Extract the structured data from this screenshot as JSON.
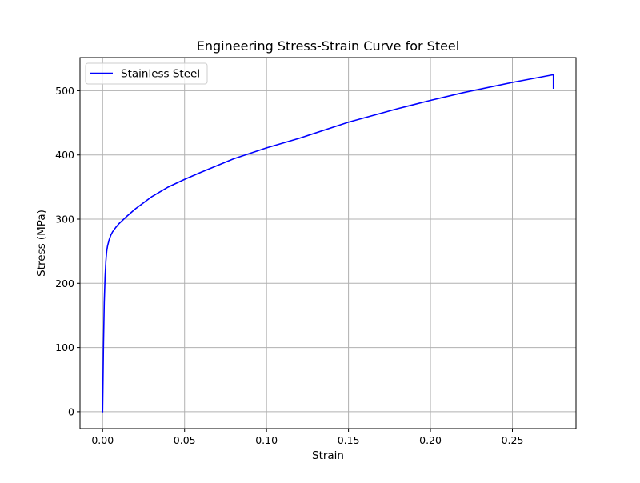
{
  "chart_data": {
    "type": "line",
    "title": "Engineering Stress-Strain Curve for Steel",
    "xlabel": "Strain",
    "ylabel": "Stress (MPa)",
    "xlim": [
      -0.0138,
      0.2888
    ],
    "ylim": [
      -26.3,
      551.6
    ],
    "xticks": [
      0.0,
      0.05,
      0.1,
      0.15,
      0.2,
      0.25
    ],
    "xtick_labels": [
      "0.00",
      "0.05",
      "0.10",
      "0.15",
      "0.20",
      "0.25"
    ],
    "yticks": [
      0,
      100,
      200,
      300,
      400,
      500
    ],
    "ytick_labels": [
      "0",
      "100",
      "200",
      "300",
      "400",
      "500"
    ],
    "grid": true,
    "legend_position": "upper-left",
    "series": [
      {
        "name": "Stainless Steel",
        "color": "#0000ff",
        "x": [
          0.0,
          0.0005,
          0.001,
          0.0015,
          0.002,
          0.0025,
          0.003,
          0.004,
          0.005,
          0.006,
          0.008,
          0.01,
          0.015,
          0.02,
          0.03,
          0.04,
          0.05,
          0.06,
          0.08,
          0.1,
          0.12,
          0.15,
          0.18,
          0.2,
          0.22,
          0.25,
          0.275,
          0.275
        ],
        "y": [
          0,
          100,
          170,
          210,
          235,
          250,
          258,
          268,
          275,
          280,
          287,
          293,
          305,
          316,
          335,
          350,
          362,
          373,
          394,
          411,
          426,
          451,
          472,
          485,
          497,
          513,
          525,
          504
        ]
      }
    ]
  }
}
